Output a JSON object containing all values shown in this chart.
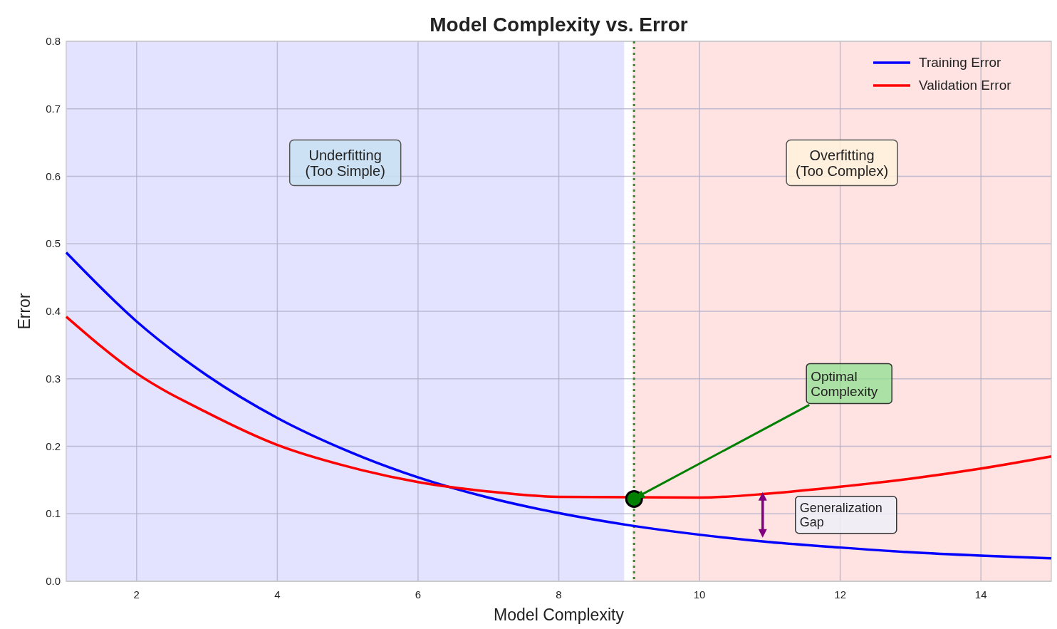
{
  "chart_data": {
    "type": "line",
    "title": "Model Complexity vs. Error",
    "xlabel": "Model Complexity",
    "ylabel": "Error",
    "x": [
      1,
      2,
      3,
      4,
      5,
      6,
      7,
      8,
      9,
      10,
      11,
      12,
      13,
      14,
      15
    ],
    "series": [
      {
        "name": "Training Error",
        "color": "#0000ff",
        "values": [
          0.487,
          0.385,
          0.305,
          0.242,
          0.193,
          0.154,
          0.124,
          0.101,
          0.083,
          0.069,
          0.058,
          0.05,
          0.043,
          0.038,
          0.034
        ]
      },
      {
        "name": "Validation Error",
        "color": "#ff0000",
        "x": [
          1,
          2,
          3,
          4,
          5,
          6,
          7,
          8,
          10,
          11,
          12,
          13,
          14,
          15
        ],
        "values": [
          0.392,
          0.308,
          0.25,
          0.202,
          0.17,
          0.147,
          0.133,
          0.125,
          0.124,
          0.13,
          0.14,
          0.152,
          0.167,
          0.185
        ]
      },
      {
        "type": "scatter",
        "color": "#008000",
        "x": [
          9.07
        ],
        "values": [
          0.122
        ]
      }
    ],
    "xlim": [
      1,
      15
    ],
    "xticks": [
      2,
      4,
      6,
      8,
      10,
      12,
      14
    ],
    "ylim": [
      0,
      0.8
    ],
    "yticks": [
      {
        "value": 0,
        "label": "0.0"
      },
      0.1,
      0.2,
      0.3,
      0.4,
      0.5,
      0.6,
      0.7,
      {
        "value": 0.8,
        "label": "0.8"
      }
    ],
    "bands": [
      {
        "axis": "x",
        "from": 1,
        "to": 8.93,
        "label": "Underfitting\n(Too Simple)",
        "color": "#e3e3ff"
      },
      {
        "axis": "x",
        "from": 9.05,
        "to": 15,
        "label": "Overfitting\n(Too Complex)",
        "color": "#ffe3e3"
      }
    ],
    "ref_lines": [
      {
        "axis": "x",
        "value": 9.07,
        "color": "#2e8b2e",
        "line_style": "dotted"
      }
    ],
    "annotations": [
      {
        "text": "Optimal\nComplexity",
        "x": 9.07,
        "y": 0.122
      },
      "Generalization\nGap"
    ],
    "grid": true,
    "legend": "top right",
    "line_style": "solid"
  }
}
